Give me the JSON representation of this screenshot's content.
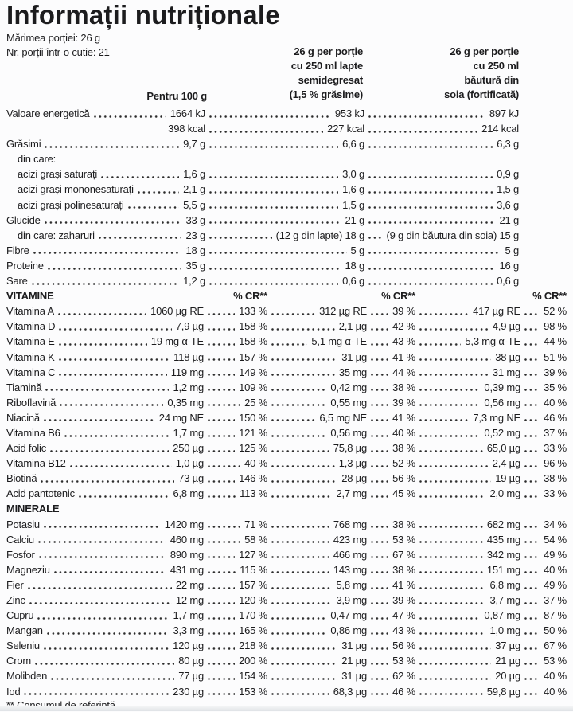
{
  "header": {
    "title": "Informații nutriționale",
    "serving_size": "Mărimea porției: 26 g",
    "servings": "Nr. porții într-o cutie: 21",
    "col1": "Pentru 100 g",
    "col2_lines": [
      "26 g per porție",
      "cu 250 ml lapte",
      "semidegresat",
      "(1,5 % grăsime)"
    ],
    "col3_lines": [
      "26 g per porție",
      "cu 250 ml",
      "băutură din",
      "soia (fortificată)"
    ]
  },
  "macros": {
    "rows": [
      {
        "label": "Valoare energetică",
        "indent": false,
        "v": [
          "1664 kJ",
          "953 kJ",
          "897 kJ"
        ]
      },
      {
        "label": "",
        "indent": false,
        "v": [
          "398 kcal",
          "227 kcal",
          "214 kcal"
        ]
      },
      {
        "label": "Grăsimi",
        "indent": false,
        "v": [
          "9,7 g",
          "6,6 g",
          "6,3 g"
        ]
      },
      {
        "label": "din care:",
        "indent": true,
        "v": [
          "",
          "",
          ""
        ]
      },
      {
        "label": "acizi grași saturați",
        "indent": true,
        "v": [
          "1,6 g",
          "3,0 g",
          "0,9 g"
        ]
      },
      {
        "label": "acizi grași mononesaturați",
        "indent": true,
        "v": [
          "2,1 g",
          "1,6 g",
          "1,5 g"
        ]
      },
      {
        "label": "acizi grași polinesaturați",
        "indent": true,
        "v": [
          "5,5 g",
          "1,5 g",
          "3,6 g"
        ]
      },
      {
        "label": "Glucide",
        "indent": false,
        "v": [
          "33 g",
          "21 g",
          "21 g"
        ]
      },
      {
        "label": "din care: zaharuri",
        "indent": true,
        "v": [
          "23 g",
          "(12 g din lapte) 18 g",
          "(9 g din băutura din soia) 15 g"
        ]
      },
      {
        "label": "Fibre",
        "indent": false,
        "v": [
          "18 g",
          "5 g",
          "5 g"
        ]
      },
      {
        "label": "Proteine",
        "indent": false,
        "v": [
          "35 g",
          "18 g",
          "16 g"
        ]
      },
      {
        "label": "Sare",
        "indent": false,
        "v": [
          "1,2 g",
          "0,6 g",
          "0,6 g"
        ]
      }
    ]
  },
  "vitamins": {
    "header": "VITAMINE",
    "cr_label": "% CR**",
    "rows": [
      {
        "label": "Vitamina A",
        "v": [
          "1060 µg RE",
          "133 %",
          "312 µg RE",
          "39 %",
          "417 µg RE",
          "52 %"
        ]
      },
      {
        "label": "Vitamina D",
        "v": [
          "7,9 µg",
          "158 %",
          "2,1 µg",
          "42 %",
          "4,9 µg",
          "98 %"
        ]
      },
      {
        "label": "Vitamina E",
        "v": [
          "19 mg α-TE",
          "158 %",
          "5,1 mg α-TE",
          "43 %",
          "5,3 mg α-TE",
          "44 %"
        ]
      },
      {
        "label": "Vitamina K",
        "v": [
          "118 µg",
          "157 %",
          "31 µg",
          "41 %",
          "38 µg",
          "51 %"
        ]
      },
      {
        "label": "Vitamina C",
        "v": [
          "119 mg",
          "149 %",
          "35 mg",
          "44 %",
          "31 mg",
          "39 %"
        ]
      },
      {
        "label": "Tiamină",
        "v": [
          "1,2 mg",
          "109 %",
          "0,42 mg",
          "38 %",
          "0,39 mg",
          "35 %"
        ]
      },
      {
        "label": "Riboflavină",
        "v": [
          "0,35 mg",
          "25 %",
          "0,55 mg",
          "39 %",
          "0,56 mg",
          "40 %"
        ]
      },
      {
        "label": "Niacină",
        "v": [
          "24 mg NE",
          "150 %",
          "6,5 mg NE",
          "41 %",
          "7,3 mg NE",
          "46 %"
        ]
      },
      {
        "label": "Vitamina B6",
        "v": [
          "1,7 mg",
          "121 %",
          "0,56 mg",
          "40 %",
          "0,52 mg",
          "37 %"
        ]
      },
      {
        "label": "Acid folic",
        "v": [
          "250 µg",
          "125 %",
          "75,8 µg",
          "38 %",
          "65,0 µg",
          "33 %"
        ]
      },
      {
        "label": "Vitamina B12",
        "v": [
          "1,0 µg",
          "40 %",
          "1,3 µg",
          "52 %",
          "2,4 µg",
          "96 %"
        ]
      },
      {
        "label": "Biotină",
        "v": [
          "73 µg",
          "146 %",
          "28 µg",
          "56 %",
          "19 µg",
          "38 %"
        ]
      },
      {
        "label": "Acid pantotenic",
        "v": [
          "6,8 mg",
          "113 %",
          "2,7 mg",
          "45 %",
          "2,0 mg",
          "33 %"
        ]
      }
    ]
  },
  "minerals": {
    "header": "MINERALE",
    "rows": [
      {
        "label": "Potasiu",
        "v": [
          "1420 mg",
          "71 %",
          "768 mg",
          "38 %",
          "682 mg",
          "34 %"
        ]
      },
      {
        "label": "Calciu",
        "v": [
          "460 mg",
          "58 %",
          "423 mg",
          "53 %",
          "435 mg",
          "54 %"
        ]
      },
      {
        "label": "Fosfor",
        "v": [
          "890 mg",
          "127 %",
          "466 mg",
          "67 %",
          "342 mg",
          "49 %"
        ]
      },
      {
        "label": "Magneziu",
        "v": [
          "431 mg",
          "115 %",
          "143 mg",
          "38 %",
          "151 mg",
          "40 %"
        ]
      },
      {
        "label": "Fier",
        "v": [
          "22 mg",
          "157 %",
          "5,8 mg",
          "41 %",
          "6,8 mg",
          "49 %"
        ]
      },
      {
        "label": "Zinc",
        "v": [
          "12 mg",
          "120 %",
          "3,9 mg",
          "39 %",
          "3,7 mg",
          "37 %"
        ]
      },
      {
        "label": "Cupru",
        "v": [
          "1,7 mg",
          "170 %",
          "0,47 mg",
          "47 %",
          "0,87 mg",
          "87 %"
        ]
      },
      {
        "label": "Mangan",
        "v": [
          "3,3 mg",
          "165 %",
          "0,86 mg",
          "43 %",
          "1,0 mg",
          "50 %"
        ]
      },
      {
        "label": "Seleniu",
        "v": [
          "120 µg",
          "218 %",
          "31 µg",
          "56 %",
          "37 µg",
          "67 %"
        ]
      },
      {
        "label": "Crom",
        "v": [
          "80 µg",
          "200 %",
          "21 µg",
          "53 %",
          "21 µg",
          "53 %"
        ]
      },
      {
        "label": "Molibden",
        "v": [
          "77 µg",
          "154 %",
          "31 µg",
          "62 %",
          "20 µg",
          "40 %"
        ]
      },
      {
        "label": "Iod",
        "v": [
          "230 µg",
          "153 %",
          "68,3 µg",
          "46 %",
          "59,8 µg",
          "40 %"
        ]
      }
    ]
  },
  "footer": {
    "note": "** Consumul de referință"
  }
}
